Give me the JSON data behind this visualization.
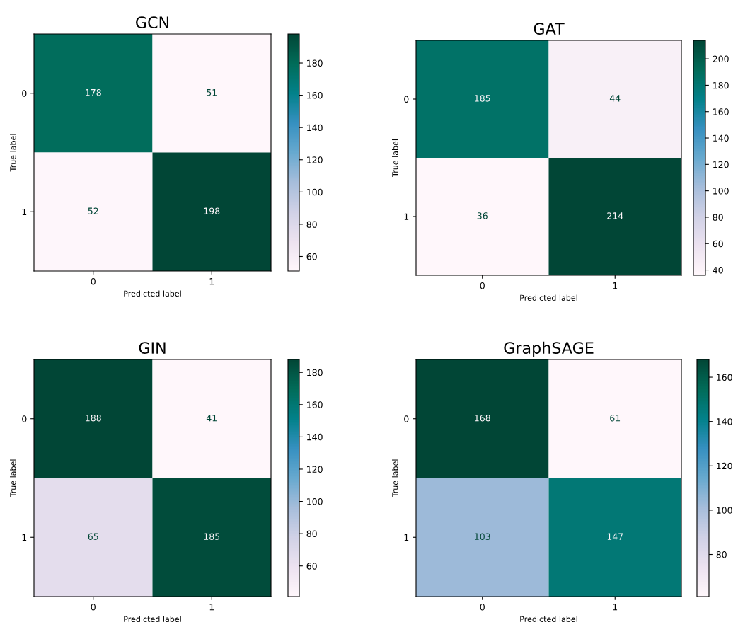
{
  "chart_data": [
    {
      "type": "heatmap",
      "title": "GCN",
      "xlabel": "Predicted label",
      "ylabel": "True label",
      "categories": [
        "0",
        "1"
      ],
      "y_categories": [
        "0",
        "1"
      ],
      "cells": [
        [
          178,
          51
        ],
        [
          52,
          198
        ]
      ],
      "clim": [
        51,
        198
      ],
      "cticks": [
        60,
        80,
        100,
        120,
        140,
        160,
        180
      ],
      "data_labels": true
    },
    {
      "type": "heatmap",
      "title": "GAT",
      "xlabel": "Predicted label",
      "ylabel": "True label",
      "categories": [
        "0",
        "1"
      ],
      "y_categories": [
        "0",
        "1"
      ],
      "cells": [
        [
          185,
          44
        ],
        [
          36,
          214
        ]
      ],
      "clim": [
        36,
        214
      ],
      "cticks": [
        40,
        60,
        80,
        100,
        120,
        140,
        160,
        180,
        200
      ],
      "data_labels": true
    },
    {
      "type": "heatmap",
      "title": "GIN",
      "xlabel": "Predicted label",
      "ylabel": "True label",
      "categories": [
        "0",
        "1"
      ],
      "y_categories": [
        "0",
        "1"
      ],
      "cells": [
        [
          188,
          41
        ],
        [
          65,
          185
        ]
      ],
      "clim": [
        41,
        188
      ],
      "cticks": [
        60,
        80,
        100,
        120,
        140,
        160,
        180
      ],
      "data_labels": true
    },
    {
      "type": "heatmap",
      "title": "GraphSAGE",
      "xlabel": "Predicted label",
      "ylabel": "True label",
      "categories": [
        "0",
        "1"
      ],
      "y_categories": [
        "0",
        "1"
      ],
      "cells": [
        [
          168,
          61
        ],
        [
          103,
          147
        ]
      ],
      "clim": [
        61,
        168
      ],
      "cticks": [
        80,
        100,
        120,
        140,
        160
      ],
      "data_labels": true
    }
  ]
}
